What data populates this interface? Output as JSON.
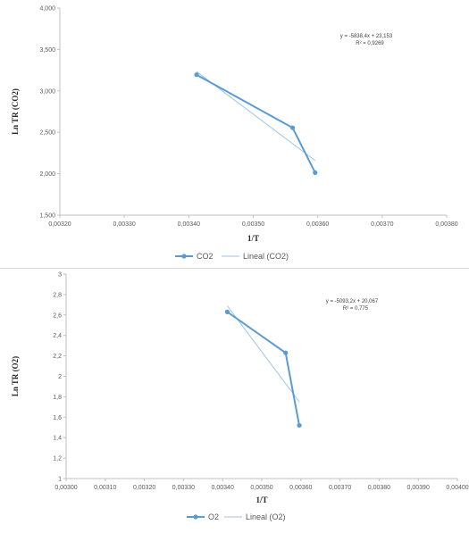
{
  "chart_data": [
    {
      "type": "line",
      "xlabel": "1/T",
      "ylabel": "Ln TR (CO2)",
      "xlim": [
        0.0032,
        0.0038
      ],
      "ylim": [
        1.5,
        4.0
      ],
      "x_ticks": [
        "0,00320",
        "0,00330",
        "0,00340",
        "0,00350",
        "0,00360",
        "0,00370",
        "0,00380"
      ],
      "y_ticks": [
        "1,500",
        "2,000",
        "2,500",
        "3,000",
        "3,500",
        "4,000"
      ],
      "series": [
        {
          "name": "CO2",
          "x": [
            0.003412,
            0.003561,
            0.003596
          ],
          "y": [
            3.195,
            2.555,
            2.013
          ],
          "color": "#5B9BD5",
          "markers": true
        },
        {
          "name": "Lineal (CO2)",
          "x": [
            0.003412,
            0.003596
          ],
          "y": [
            3.233,
            2.159
          ],
          "color": "#9DC3E6",
          "trendline": true
        }
      ],
      "equation": "y = -5838,4x + 23,153",
      "r2": "R² = 0,9269",
      "legend_position": "bottom"
    },
    {
      "type": "line",
      "xlabel": "1/T",
      "ylabel": "Ln TR (O2)",
      "xlim": [
        0.003,
        0.004
      ],
      "ylim": [
        1,
        3
      ],
      "x_ticks": [
        "0,00300",
        "0,00310",
        "0,00320",
        "0,00330",
        "0,00340",
        "0,00350",
        "0,00360",
        "0,00370",
        "0,00380",
        "0,00390",
        "0,00400"
      ],
      "y_ticks": [
        "1",
        "1,2",
        "1,4",
        "1,6",
        "1,8",
        "2",
        "2,2",
        "2,4",
        "2,6",
        "2,8",
        "3"
      ],
      "series": [
        {
          "name": "O2",
          "x": [
            0.003412,
            0.003561,
            0.003596
          ],
          "y": [
            2.63,
            2.23,
            1.52
          ],
          "color": "#5B9BD5",
          "markers": true
        },
        {
          "name": "Lineal (O2)",
          "x": [
            0.003412,
            0.003596
          ],
          "y": [
            2.69,
            1.75
          ],
          "color": "#9DC3E6",
          "trendline": true
        }
      ],
      "equation": "y = -5093,2x + 20,067",
      "r2": "R² = 0,775",
      "legend_position": "bottom"
    }
  ]
}
